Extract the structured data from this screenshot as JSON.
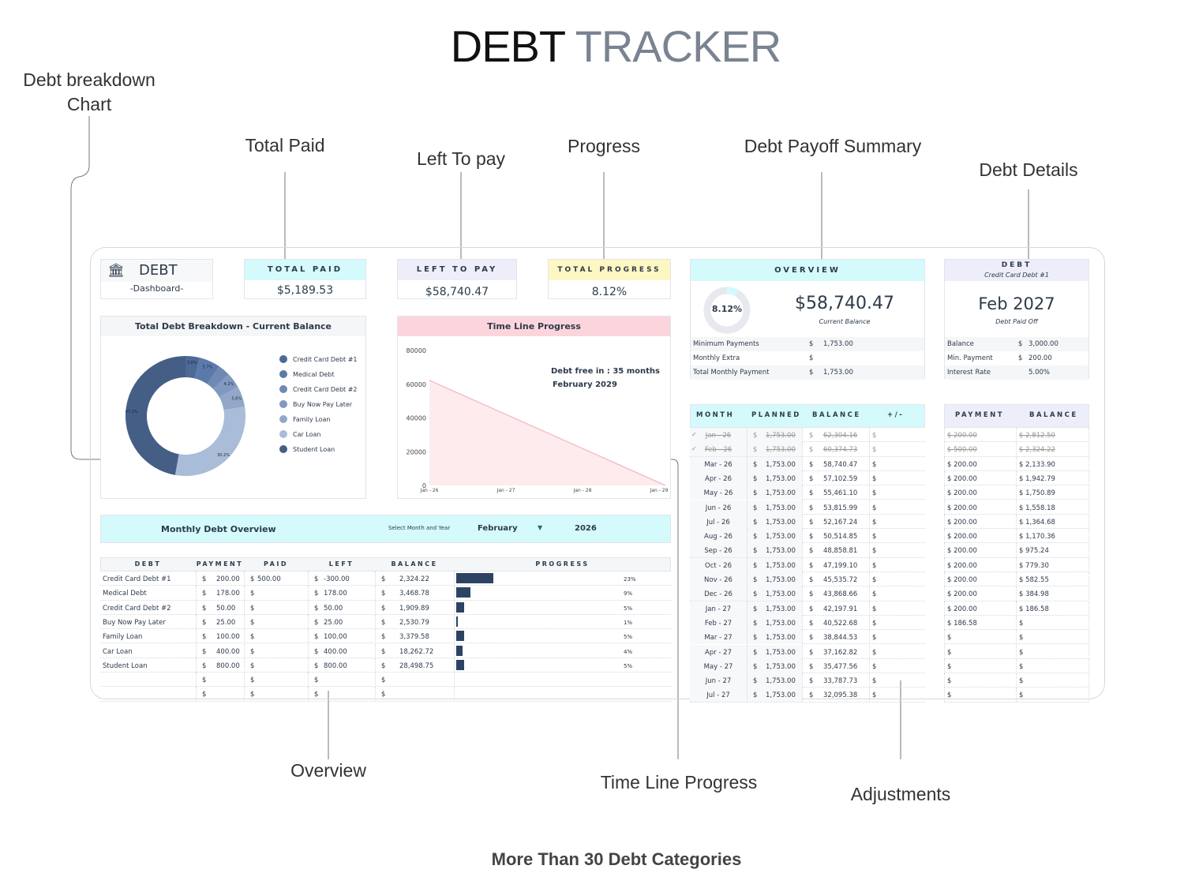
{
  "title": {
    "part1": "DEBT",
    "part2": "TRACKER"
  },
  "annotations": {
    "debt_breakdown_line1": "Debt breakdown",
    "debt_breakdown_line2": "Chart",
    "total_paid": "Total Paid",
    "left_to_pay": "Left To pay",
    "progress": "Progress",
    "debt_payoff_summary": "Debt Payoff Summary",
    "debt_details": "Debt Details",
    "overview": "Overview",
    "time_line_progress": "Time Line Progress",
    "adjustments": "Adjustments"
  },
  "footer": "More Than 30 Debt Categories",
  "logo": {
    "icon": "bank-icon",
    "title": "DEBT",
    "subtitle": "-Dashboard-"
  },
  "cards": {
    "total_paid": {
      "label": "TOTAL PAID",
      "value": "$5,189.53",
      "color": "#d4fafc"
    },
    "left_to_pay": {
      "label": "LEFT TO PAY",
      "value": "$58,740.47",
      "color": "#eeeefa"
    },
    "total_progress": {
      "label": "TOTAL PROGRESS",
      "value": "8.12%",
      "color": "#fdf7c3"
    }
  },
  "overview": {
    "header": "OVERVIEW",
    "progress_label": "8.12%",
    "progress_fraction": 0.0812,
    "balance": "$58,740.47",
    "balance_caption": "Current Balance",
    "rows": [
      {
        "label": "Minimum Payments",
        "currency": "$",
        "value": "1,753.00"
      },
      {
        "label": "Monthly Extra",
        "currency": "$",
        "value": ""
      },
      {
        "label": "Total Monthly Payment",
        "currency": "$",
        "value": "1,753.00"
      }
    ]
  },
  "debt_details": {
    "header": "DEBT",
    "selected_debt": "Credit Card Debt #1",
    "payoff_date": "Feb 2027",
    "payoff_caption": "Debt Paid Off",
    "rows": [
      {
        "label": "Balance",
        "currency": "$",
        "value": "3,000.00"
      },
      {
        "label": "Min. Payment",
        "currency": "$",
        "value": "200.00"
      },
      {
        "label": "Interest Rate",
        "currency": "",
        "value": "5.00%"
      }
    ]
  },
  "breakdown": {
    "title": "Total Debt Breakdown - Current Balance",
    "chart_data": {
      "type": "pie",
      "categories": [
        "Credit Card Debt #1",
        "Medical Debt",
        "Credit Card Debt #2",
        "Buy Now Pay Later",
        "Family Loan",
        "Car Loan",
        "Student Loan"
      ],
      "values": [
        3.8,
        5.7,
        3.2,
        4.2,
        5.6,
        30.2,
        47.2
      ],
      "labels": [
        "3.8%",
        "5.7%",
        "",
        "4.2%",
        "5.6%",
        "30.2%",
        "47.2%"
      ],
      "colors": [
        "#4d6996",
        "#5b7aaa",
        "#6f89b2",
        "#8199be",
        "#93a8c9",
        "#a9bcd8",
        "#455e86"
      ],
      "legend": "right"
    }
  },
  "timeline": {
    "title": "Time Line Progress",
    "annotation_line1": "Debt free in : 35 months",
    "annotation_line2": "February 2029",
    "chart_data": {
      "type": "area",
      "x": [
        "Jan - 26",
        "Feb - 29"
      ],
      "y": [
        62304.16,
        0
      ],
      "ylim": [
        0,
        80000
      ],
      "yticks": [
        "0",
        "20000",
        "40000",
        "60000",
        "80000"
      ],
      "xticks": [
        "Jan - 26",
        "Jan - 27",
        "Jan - 28",
        "Jan - 29"
      ],
      "color": "#f5b8c3",
      "grid": false
    }
  },
  "monthly": {
    "title": "Monthly Debt Overview",
    "select_label": "Select Month and Year",
    "month": "February",
    "year": "2026",
    "columns": [
      "DEBT",
      "PAYMENT",
      "PAID",
      "LEFT",
      "BALANCE",
      "PROGRESS"
    ],
    "rows": [
      {
        "debt": "Credit Card Debt #1",
        "payment": "200.00",
        "paid": "500.00",
        "left": "-300.00",
        "balance": "2,324.22",
        "progress": 23,
        "progress_label": "23%"
      },
      {
        "debt": "Medical Debt",
        "payment": "178.00",
        "paid": "",
        "left": "178.00",
        "balance": "3,468.78",
        "progress": 9,
        "progress_label": "9%"
      },
      {
        "debt": "Credit Card Debt #2",
        "payment": "50.00",
        "paid": "",
        "left": "50.00",
        "balance": "1,909.89",
        "progress": 5,
        "progress_label": "5%"
      },
      {
        "debt": "Buy Now Pay Later",
        "payment": "25.00",
        "paid": "",
        "left": "25.00",
        "balance": "2,530.79",
        "progress": 1,
        "progress_label": "1%"
      },
      {
        "debt": "Family Loan",
        "payment": "100.00",
        "paid": "",
        "left": "100.00",
        "balance": "3,379.58",
        "progress": 5,
        "progress_label": "5%"
      },
      {
        "debt": "Car Loan",
        "payment": "400.00",
        "paid": "",
        "left": "400.00",
        "balance": "18,262.72",
        "progress": 4,
        "progress_label": "4%"
      },
      {
        "debt": "Student Loan",
        "payment": "800.00",
        "paid": "",
        "left": "800.00",
        "balance": "28,498.75",
        "progress": 5,
        "progress_label": "5%"
      },
      {
        "debt": "",
        "payment": "",
        "paid": "",
        "left": "",
        "balance": "",
        "progress": null,
        "progress_label": ""
      },
      {
        "debt": "",
        "payment": "",
        "paid": "",
        "left": "",
        "balance": "",
        "progress": null,
        "progress_label": ""
      }
    ]
  },
  "schedule": {
    "columns": [
      "MONTH",
      "PLANNED",
      "BALANCE",
      "+/-"
    ],
    "rows": [
      {
        "done": true,
        "month": "Jan - 26",
        "planned": "1,753.00",
        "balance": "62,304.16"
      },
      {
        "done": true,
        "month": "Feb - 26",
        "planned": "1,753.00",
        "balance": "60,374.73"
      },
      {
        "done": false,
        "month": "Mar - 26",
        "planned": "1,753.00",
        "balance": "58,740.47"
      },
      {
        "done": false,
        "month": "Apr - 26",
        "planned": "1,753.00",
        "balance": "57,102.59"
      },
      {
        "done": false,
        "month": "May - 26",
        "planned": "1,753.00",
        "balance": "55,461.10"
      },
      {
        "done": false,
        "month": "Jun - 26",
        "planned": "1,753.00",
        "balance": "53,815.99"
      },
      {
        "done": false,
        "month": "Jul - 26",
        "planned": "1,753.00",
        "balance": "52,167.24"
      },
      {
        "done": false,
        "month": "Aug - 26",
        "planned": "1,753.00",
        "balance": "50,514.85"
      },
      {
        "done": false,
        "month": "Sep - 26",
        "planned": "1,753.00",
        "balance": "48,858.81"
      },
      {
        "done": false,
        "month": "Oct - 26",
        "planned": "1,753.00",
        "balance": "47,199.10"
      },
      {
        "done": false,
        "month": "Nov - 26",
        "planned": "1,753.00",
        "balance": "45,535.72"
      },
      {
        "done": false,
        "month": "Dec - 26",
        "planned": "1,753.00",
        "balance": "43,868.66"
      },
      {
        "done": false,
        "month": "Jan - 27",
        "planned": "1,753.00",
        "balance": "42,197.91"
      },
      {
        "done": false,
        "month": "Feb - 27",
        "planned": "1,753.00",
        "balance": "40,522.68"
      },
      {
        "done": false,
        "month": "Mar - 27",
        "planned": "1,753.00",
        "balance": "38,844.53"
      },
      {
        "done": false,
        "month": "Apr - 27",
        "planned": "1,753.00",
        "balance": "37,162.82"
      },
      {
        "done": false,
        "month": "May - 27",
        "planned": "1,753.00",
        "balance": "35,477.56"
      },
      {
        "done": false,
        "month": "Jun - 27",
        "planned": "1,753.00",
        "balance": "33,787.73"
      },
      {
        "done": false,
        "month": "Jul - 27",
        "planned": "1,753.00",
        "balance": "32,095.38"
      }
    ]
  },
  "debt_schedule": {
    "columns": [
      "PAYMENT",
      "BALANCE"
    ],
    "rows": [
      {
        "done": true,
        "payment": "200.00",
        "balance": "2,812.50"
      },
      {
        "done": true,
        "payment": "500.00",
        "balance": "2,324.22"
      },
      {
        "done": false,
        "payment": "200.00",
        "balance": "2,133.90"
      },
      {
        "done": false,
        "payment": "200.00",
        "balance": "1,942.79"
      },
      {
        "done": false,
        "payment": "200.00",
        "balance": "1,750.89"
      },
      {
        "done": false,
        "payment": "200.00",
        "balance": "1,558.18"
      },
      {
        "done": false,
        "payment": "200.00",
        "balance": "1,364.68"
      },
      {
        "done": false,
        "payment": "200.00",
        "balance": "1,170.36"
      },
      {
        "done": false,
        "payment": "200.00",
        "balance": "975.24"
      },
      {
        "done": false,
        "payment": "200.00",
        "balance": "779.30"
      },
      {
        "done": false,
        "payment": "200.00",
        "balance": "582.55"
      },
      {
        "done": false,
        "payment": "200.00",
        "balance": "384.98"
      },
      {
        "done": false,
        "payment": "200.00",
        "balance": "186.58"
      },
      {
        "done": false,
        "payment": "186.58",
        "balance": ""
      },
      {
        "done": false,
        "payment": "",
        "balance": ""
      },
      {
        "done": false,
        "payment": "",
        "balance": ""
      },
      {
        "done": false,
        "payment": "",
        "balance": ""
      },
      {
        "done": false,
        "payment": "",
        "balance": ""
      },
      {
        "done": false,
        "payment": "",
        "balance": ""
      }
    ]
  }
}
